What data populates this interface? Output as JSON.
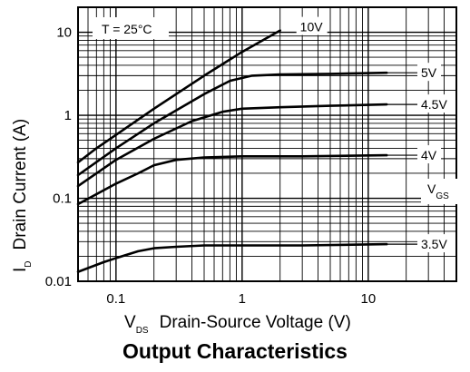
{
  "chart_data": {
    "type": "line",
    "title": "Output Characteristics",
    "xlabel_prefix": "V",
    "xlabel_sub": "DS",
    "xlabel_text": "Drain-Source Voltage (V)",
    "ylabel_prefix": "I",
    "ylabel_sub": "D",
    "ylabel_text": "Drain Current (A)",
    "xscale": "log",
    "yscale": "log",
    "xlim": [
      0.05,
      50
    ],
    "ylim": [
      0.01,
      20
    ],
    "grid": true,
    "xticks": [
      {
        "value": 0.1,
        "label": "0.1"
      },
      {
        "value": 1,
        "label": "1"
      },
      {
        "value": 10,
        "label": "10"
      }
    ],
    "yticks": [
      {
        "value": 10,
        "label": "10"
      },
      {
        "value": 1,
        "label": "1"
      },
      {
        "value": 0.1,
        "label": "0.1"
      },
      {
        "value": 0.01,
        "label": "0.01"
      }
    ],
    "annotation": "T = 25°C",
    "legend_title_prefix": "V",
    "legend_title_sub": "GS",
    "series": [
      {
        "name": "10V",
        "x": [
          0.05,
          0.07,
          0.1,
          0.2,
          0.5,
          1,
          2
        ],
        "y": [
          0.27,
          0.4,
          0.58,
          1.2,
          3.0,
          5.8,
          10.5
        ]
      },
      {
        "name": "5V",
        "x": [
          0.05,
          0.1,
          0.2,
          0.5,
          0.8,
          1.2,
          2,
          5,
          14
        ],
        "y": [
          0.19,
          0.4,
          0.8,
          1.8,
          2.6,
          3.0,
          3.1,
          3.15,
          3.25
        ]
      },
      {
        "name": "4.5V",
        "x": [
          0.05,
          0.1,
          0.2,
          0.4,
          0.7,
          1,
          2,
          5,
          14
        ],
        "y": [
          0.14,
          0.29,
          0.52,
          0.85,
          1.1,
          1.2,
          1.25,
          1.3,
          1.35
        ]
      },
      {
        "name": "4V",
        "x": [
          0.05,
          0.1,
          0.15,
          0.2,
          0.3,
          0.5,
          1,
          3,
          14
        ],
        "y": [
          0.085,
          0.15,
          0.2,
          0.25,
          0.29,
          0.31,
          0.32,
          0.32,
          0.33
        ]
      },
      {
        "name": "3.5V",
        "x": [
          0.05,
          0.08,
          0.1,
          0.15,
          0.2,
          0.3,
          0.5,
          1,
          3,
          14
        ],
        "y": [
          0.013,
          0.017,
          0.019,
          0.023,
          0.025,
          0.026,
          0.027,
          0.027,
          0.027,
          0.028
        ]
      }
    ]
  }
}
